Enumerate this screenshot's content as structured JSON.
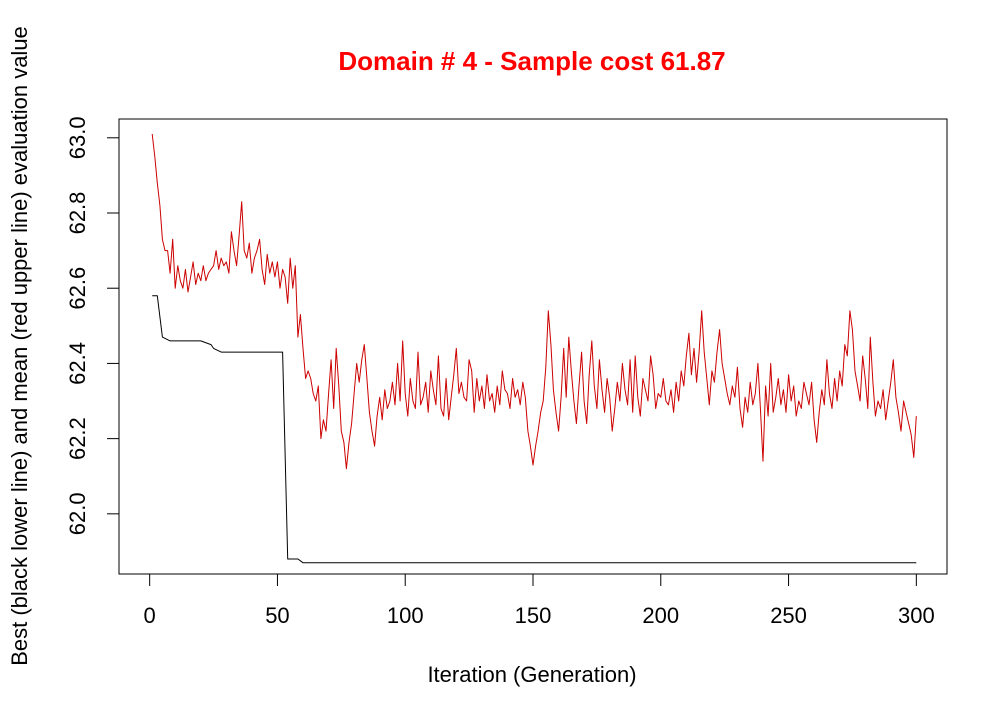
{
  "chart_data": {
    "type": "line",
    "title": "Domain # 4  - Sample cost 61.87",
    "xlabel": "Iteration (Generation)",
    "ylabel": "Best (black lower line) and mean (red upper line) evaluation value",
    "xlim": [
      -12,
      312
    ],
    "ylim": [
      61.84,
      63.05
    ],
    "x_ticks": [
      0,
      50,
      100,
      150,
      200,
      250,
      300
    ],
    "x_tick_labels": [
      "0",
      "50",
      "100",
      "150",
      "200",
      "250",
      "300"
    ],
    "y_ticks": [
      62.0,
      62.2,
      62.4,
      62.6,
      62.8,
      63.0
    ],
    "y_tick_labels": [
      "62.0",
      "62.2",
      "62.4",
      "62.6",
      "62.8",
      "63.0"
    ],
    "grid": false,
    "legend": "none",
    "colors": {
      "title": "#ff0000",
      "best": "#000000",
      "mean": "#cc0000",
      "axes": "#000000"
    },
    "series": [
      {
        "role": "best",
        "color": "#000000",
        "points": [
          [
            1,
            62.58
          ],
          [
            3,
            62.58
          ],
          [
            5,
            62.47
          ],
          [
            8,
            62.46
          ],
          [
            20,
            62.46
          ],
          [
            24,
            62.45
          ],
          [
            25,
            62.44
          ],
          [
            28,
            62.43
          ],
          [
            52,
            62.43
          ],
          [
            54,
            61.88
          ],
          [
            58,
            61.88
          ],
          [
            60,
            61.87
          ],
          [
            300,
            61.87
          ]
        ]
      },
      {
        "role": "mean",
        "color": "#cc0000",
        "points": [
          [
            1,
            63.01
          ],
          [
            2,
            62.95
          ],
          [
            3,
            62.88
          ],
          [
            4,
            62.82
          ],
          [
            5,
            62.73
          ],
          [
            6,
            62.7
          ],
          [
            7,
            62.7
          ],
          [
            8,
            62.64
          ],
          [
            9,
            62.73
          ],
          [
            10,
            62.6
          ],
          [
            11,
            62.66
          ],
          [
            12,
            62.62
          ],
          [
            13,
            62.6
          ],
          [
            14,
            62.65
          ],
          [
            15,
            62.59
          ],
          [
            16,
            62.63
          ],
          [
            17,
            62.67
          ],
          [
            18,
            62.61
          ],
          [
            19,
            62.64
          ],
          [
            20,
            62.62
          ],
          [
            21,
            62.66
          ],
          [
            22,
            62.62
          ],
          [
            23,
            62.64
          ],
          [
            24,
            62.65
          ],
          [
            25,
            62.66
          ],
          [
            26,
            62.7
          ],
          [
            27,
            62.65
          ],
          [
            28,
            62.68
          ],
          [
            29,
            62.66
          ],
          [
            30,
            62.67
          ],
          [
            31,
            62.64
          ],
          [
            32,
            62.75
          ],
          [
            33,
            62.7
          ],
          [
            34,
            62.66
          ],
          [
            35,
            62.74
          ],
          [
            36,
            62.83
          ],
          [
            37,
            62.7
          ],
          [
            38,
            62.68
          ],
          [
            39,
            62.72
          ],
          [
            40,
            62.64
          ],
          [
            41,
            62.68
          ],
          [
            42,
            62.7
          ],
          [
            43,
            62.73
          ],
          [
            44,
            62.65
          ],
          [
            45,
            62.61
          ],
          [
            46,
            62.69
          ],
          [
            47,
            62.64
          ],
          [
            48,
            62.67
          ],
          [
            49,
            62.63
          ],
          [
            50,
            62.67
          ],
          [
            51,
            62.6
          ],
          [
            52,
            62.65
          ],
          [
            53,
            62.63
          ],
          [
            54,
            62.56
          ],
          [
            55,
            62.68
          ],
          [
            56,
            62.6
          ],
          [
            57,
            62.66
          ],
          [
            58,
            62.47
          ],
          [
            59,
            62.53
          ],
          [
            60,
            62.44
          ],
          [
            61,
            62.36
          ],
          [
            62,
            62.38
          ],
          [
            63,
            62.36
          ],
          [
            64,
            62.32
          ],
          [
            65,
            62.3
          ],
          [
            66,
            62.34
          ],
          [
            67,
            62.2
          ],
          [
            68,
            62.25
          ],
          [
            69,
            62.22
          ],
          [
            70,
            62.32
          ],
          [
            71,
            62.41
          ],
          [
            72,
            62.28
          ],
          [
            73,
            62.44
          ],
          [
            74,
            62.34
          ],
          [
            75,
            62.22
          ],
          [
            76,
            62.19
          ],
          [
            77,
            62.12
          ],
          [
            78,
            62.19
          ],
          [
            79,
            62.24
          ],
          [
            80,
            62.32
          ],
          [
            81,
            62.4
          ],
          [
            82,
            62.35
          ],
          [
            83,
            62.41
          ],
          [
            84,
            62.45
          ],
          [
            85,
            62.36
          ],
          [
            86,
            62.27
          ],
          [
            87,
            62.22
          ],
          [
            88,
            62.18
          ],
          [
            89,
            62.26
          ],
          [
            90,
            62.31
          ],
          [
            91,
            62.25
          ],
          [
            92,
            62.33
          ],
          [
            93,
            62.28
          ],
          [
            94,
            62.3
          ],
          [
            95,
            62.35
          ],
          [
            96,
            62.29
          ],
          [
            97,
            62.4
          ],
          [
            98,
            62.3
          ],
          [
            99,
            62.46
          ],
          [
            100,
            62.32
          ],
          [
            101,
            62.26
          ],
          [
            102,
            62.36
          ],
          [
            103,
            62.3
          ],
          [
            104,
            62.28
          ],
          [
            105,
            62.43
          ],
          [
            106,
            62.29
          ],
          [
            107,
            62.31
          ],
          [
            108,
            62.35
          ],
          [
            109,
            62.27
          ],
          [
            110,
            62.38
          ],
          [
            111,
            62.33
          ],
          [
            112,
            62.29
          ],
          [
            113,
            62.42
          ],
          [
            114,
            62.28
          ],
          [
            115,
            62.26
          ],
          [
            116,
            62.36
          ],
          [
            117,
            62.25
          ],
          [
            118,
            62.31
          ],
          [
            119,
            62.37
          ],
          [
            120,
            62.44
          ],
          [
            121,
            62.32
          ],
          [
            122,
            62.35
          ],
          [
            123,
            62.31
          ],
          [
            124,
            62.3
          ],
          [
            125,
            62.41
          ],
          [
            126,
            62.38
          ],
          [
            127,
            62.27
          ],
          [
            128,
            62.36
          ],
          [
            129,
            62.3
          ],
          [
            130,
            62.34
          ],
          [
            131,
            62.28
          ],
          [
            132,
            62.37
          ],
          [
            133,
            62.3
          ],
          [
            134,
            62.32
          ],
          [
            135,
            62.27
          ],
          [
            136,
            62.34
          ],
          [
            137,
            62.29
          ],
          [
            138,
            62.38
          ],
          [
            139,
            62.33
          ],
          [
            140,
            62.32
          ],
          [
            141,
            62.28
          ],
          [
            142,
            62.36
          ],
          [
            143,
            62.31
          ],
          [
            144,
            62.33
          ],
          [
            145,
            62.29
          ],
          [
            146,
            62.35
          ],
          [
            147,
            62.31
          ],
          [
            148,
            62.22
          ],
          [
            149,
            62.18
          ],
          [
            150,
            62.13
          ],
          [
            151,
            62.18
          ],
          [
            152,
            62.22
          ],
          [
            153,
            62.27
          ],
          [
            154,
            62.3
          ],
          [
            155,
            62.39
          ],
          [
            156,
            62.54
          ],
          [
            157,
            62.45
          ],
          [
            158,
            62.33
          ],
          [
            159,
            62.27
          ],
          [
            160,
            62.22
          ],
          [
            161,
            62.31
          ],
          [
            162,
            62.44
          ],
          [
            163,
            62.31
          ],
          [
            164,
            62.47
          ],
          [
            165,
            62.38
          ],
          [
            166,
            62.3
          ],
          [
            167,
            62.24
          ],
          [
            168,
            62.34
          ],
          [
            169,
            62.43
          ],
          [
            170,
            62.3
          ],
          [
            171,
            62.24
          ],
          [
            172,
            62.37
          ],
          [
            173,
            62.46
          ],
          [
            174,
            62.34
          ],
          [
            175,
            62.28
          ],
          [
            176,
            62.41
          ],
          [
            177,
            62.33
          ],
          [
            178,
            62.27
          ],
          [
            179,
            62.36
          ],
          [
            180,
            62.31
          ],
          [
            181,
            62.22
          ],
          [
            182,
            62.28
          ],
          [
            183,
            62.35
          ],
          [
            184,
            62.3
          ],
          [
            185,
            62.4
          ],
          [
            186,
            62.33
          ],
          [
            187,
            62.29
          ],
          [
            188,
            62.41
          ],
          [
            189,
            62.27
          ],
          [
            190,
            62.42
          ],
          [
            191,
            62.31
          ],
          [
            192,
            62.26
          ],
          [
            193,
            62.36
          ],
          [
            194,
            62.33
          ],
          [
            195,
            62.3
          ],
          [
            196,
            62.42
          ],
          [
            197,
            62.37
          ],
          [
            198,
            62.28
          ],
          [
            199,
            62.32
          ],
          [
            200,
            62.31
          ],
          [
            201,
            62.36
          ],
          [
            202,
            62.3
          ],
          [
            203,
            62.29
          ],
          [
            204,
            62.33
          ],
          [
            205,
            62.27
          ],
          [
            206,
            62.35
          ],
          [
            207,
            62.3
          ],
          [
            208,
            62.38
          ],
          [
            209,
            62.34
          ],
          [
            210,
            62.42
          ],
          [
            211,
            62.48
          ],
          [
            212,
            62.37
          ],
          [
            213,
            62.44
          ],
          [
            214,
            62.35
          ],
          [
            215,
            62.43
          ],
          [
            216,
            62.54
          ],
          [
            217,
            62.43
          ],
          [
            218,
            62.36
          ],
          [
            219,
            62.29
          ],
          [
            220,
            62.38
          ],
          [
            221,
            62.35
          ],
          [
            222,
            62.43
          ],
          [
            223,
            62.49
          ],
          [
            224,
            62.4
          ],
          [
            225,
            62.36
          ],
          [
            226,
            62.32
          ],
          [
            227,
            62.29
          ],
          [
            228,
            62.34
          ],
          [
            229,
            62.31
          ],
          [
            230,
            62.39
          ],
          [
            231,
            62.28
          ],
          [
            232,
            62.23
          ],
          [
            233,
            62.31
          ],
          [
            234,
            62.27
          ],
          [
            235,
            62.35
          ],
          [
            236,
            62.29
          ],
          [
            237,
            62.32
          ],
          [
            238,
            62.4
          ],
          [
            239,
            62.28
          ],
          [
            240,
            62.14
          ],
          [
            241,
            62.34
          ],
          [
            242,
            62.26
          ],
          [
            243,
            62.4
          ],
          [
            244,
            62.27
          ],
          [
            245,
            62.31
          ],
          [
            246,
            62.36
          ],
          [
            247,
            62.29
          ],
          [
            248,
            62.33
          ],
          [
            249,
            62.27
          ],
          [
            250,
            62.37
          ],
          [
            251,
            62.3
          ],
          [
            252,
            62.34
          ],
          [
            253,
            62.26
          ],
          [
            254,
            62.3
          ],
          [
            255,
            62.28
          ],
          [
            256,
            62.35
          ],
          [
            257,
            62.32
          ],
          [
            258,
            62.29
          ],
          [
            259,
            62.35
          ],
          [
            260,
            62.25
          ],
          [
            261,
            62.19
          ],
          [
            262,
            62.27
          ],
          [
            263,
            62.33
          ],
          [
            264,
            62.29
          ],
          [
            265,
            62.41
          ],
          [
            266,
            62.32
          ],
          [
            267,
            62.28
          ],
          [
            268,
            62.36
          ],
          [
            269,
            62.3
          ],
          [
            270,
            62.38
          ],
          [
            271,
            62.34
          ],
          [
            272,
            62.45
          ],
          [
            273,
            62.42
          ],
          [
            274,
            62.54
          ],
          [
            275,
            62.49
          ],
          [
            276,
            62.38
          ],
          [
            277,
            62.34
          ],
          [
            278,
            62.3
          ],
          [
            279,
            62.42
          ],
          [
            280,
            62.36
          ],
          [
            281,
            62.28
          ],
          [
            282,
            62.47
          ],
          [
            283,
            62.35
          ],
          [
            284,
            62.26
          ],
          [
            285,
            62.3
          ],
          [
            286,
            62.28
          ],
          [
            287,
            62.33
          ],
          [
            288,
            62.25
          ],
          [
            289,
            62.3
          ],
          [
            290,
            62.35
          ],
          [
            291,
            62.41
          ],
          [
            292,
            62.31
          ],
          [
            293,
            62.27
          ],
          [
            294,
            62.22
          ],
          [
            295,
            62.3
          ],
          [
            296,
            62.27
          ],
          [
            297,
            62.24
          ],
          [
            298,
            62.21
          ],
          [
            299,
            62.15
          ],
          [
            300,
            62.26
          ]
        ]
      }
    ]
  }
}
